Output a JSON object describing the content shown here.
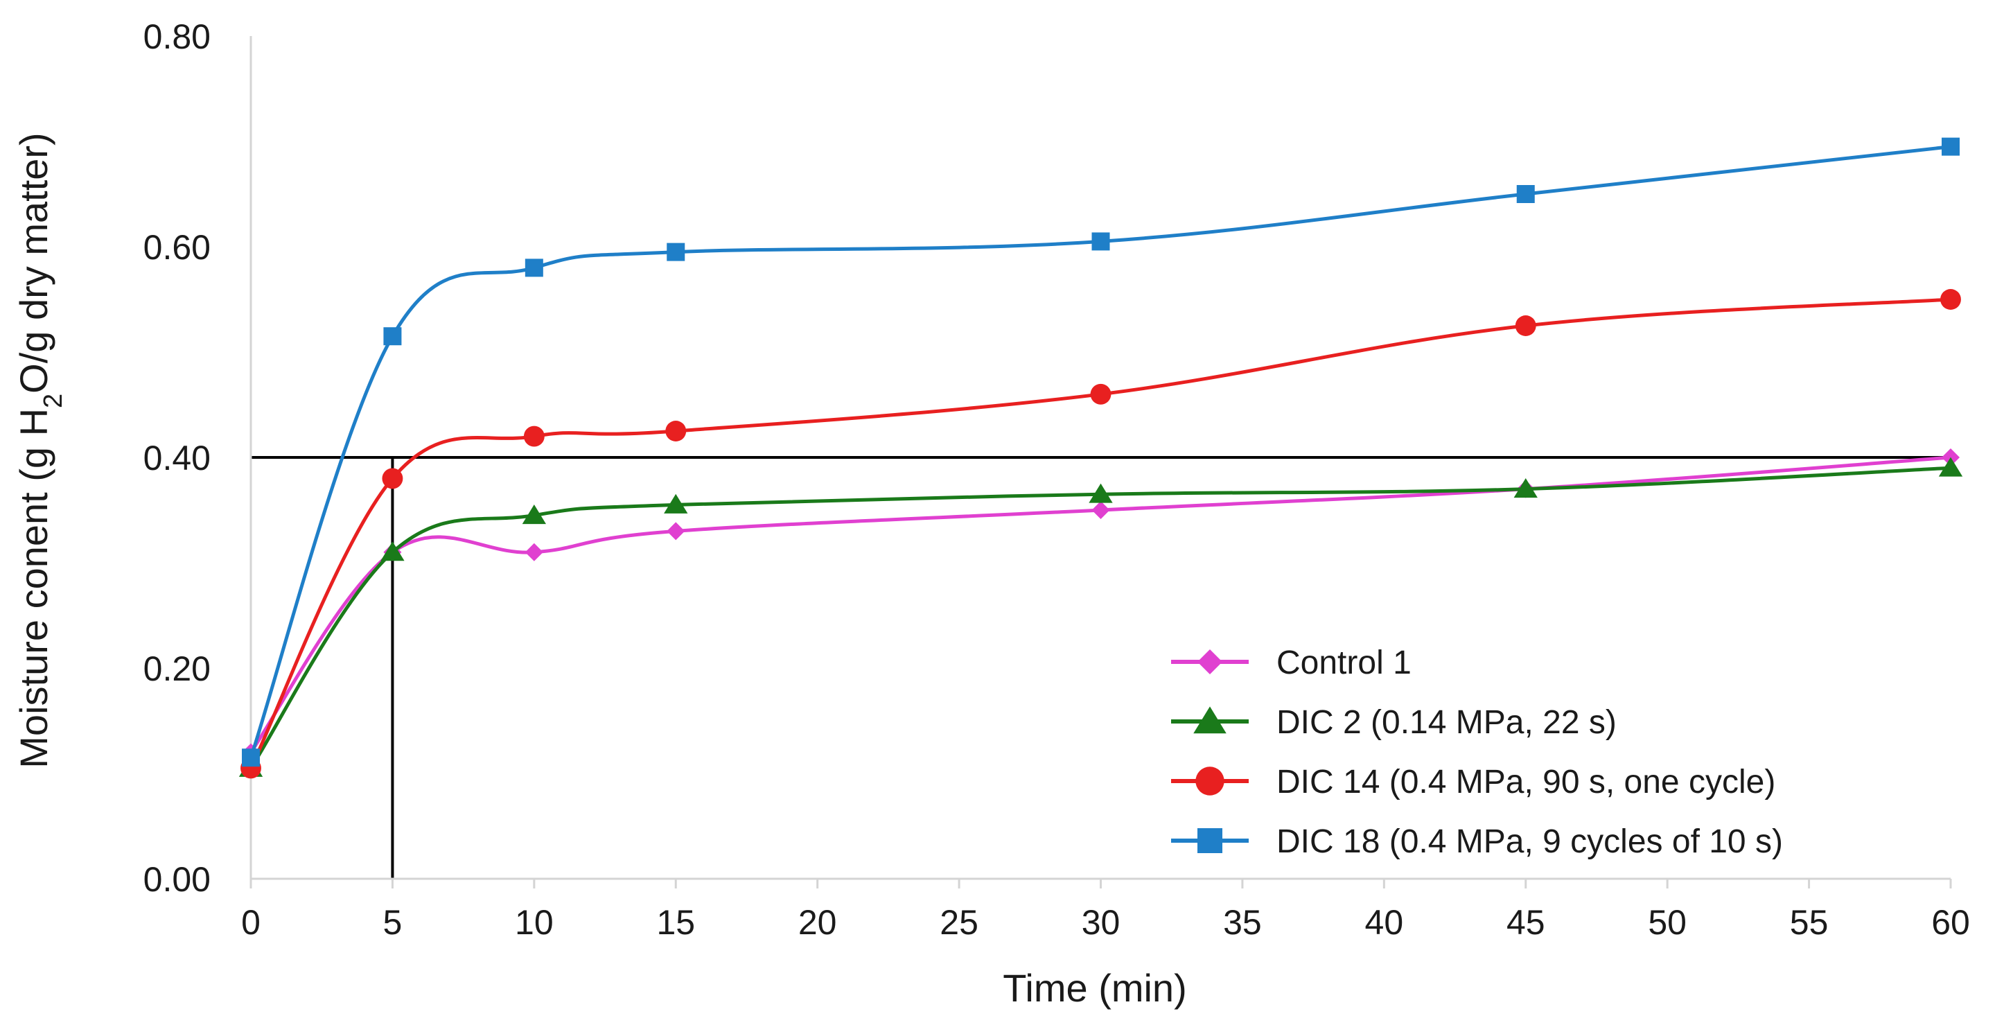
{
  "chart_data": {
    "type": "line",
    "title": "",
    "xlabel": "Time (min)",
    "ylabel_parts": [
      "Moisture conent (g H",
      "2",
      "O/g dry matter)"
    ],
    "xlim": [
      0,
      60
    ],
    "ylim": [
      0,
      0.8
    ],
    "x_tick_values": [
      0,
      5,
      10,
      15,
      20,
      25,
      30,
      35,
      40,
      45,
      50,
      55,
      60
    ],
    "x_tick_labels": [
      "0",
      "5",
      "10",
      "15",
      "20",
      "25",
      "30",
      "35",
      "40",
      "45",
      "50",
      "55",
      "60"
    ],
    "y_tick_values": [
      0,
      0.2,
      0.4,
      0.6,
      0.8
    ],
    "y_tick_labels": [
      "0.00",
      "0.20",
      "0.40",
      "0.60",
      "0.80"
    ],
    "grid": false,
    "legend_position": "bottom-right",
    "x": [
      0,
      5,
      10,
      15,
      30,
      45,
      60
    ],
    "series": [
      {
        "name": "Control 1",
        "color": "#e040d0",
        "marker": "diamond",
        "values": [
          0.12,
          0.31,
          0.31,
          0.33,
          0.35,
          0.37,
          0.4
        ]
      },
      {
        "name": "DIC 2 (0.14 MPa, 22 s)",
        "color": "#1a7a1a",
        "marker": "triangle",
        "values": [
          0.105,
          0.31,
          0.345,
          0.355,
          0.365,
          0.37,
          0.39
        ]
      },
      {
        "name": "DIC 14 (0.4 MPa, 90 s, one cycle)",
        "color": "#e82020",
        "marker": "circle",
        "values": [
          0.105,
          0.38,
          0.42,
          0.425,
          0.46,
          0.525,
          0.55
        ]
      },
      {
        "name": "DIC 18 (0.4 MPa, 9 cycles of 10 s)",
        "color": "#1f7fc8",
        "marker": "square",
        "values": [
          0.115,
          0.515,
          0.58,
          0.595,
          0.605,
          0.65,
          0.695
        ]
      }
    ],
    "reference_lines": [
      {
        "orientation": "horizontal",
        "value": 0.4
      },
      {
        "orientation": "vertical",
        "value": 5,
        "to_y": 0.4
      }
    ]
  }
}
